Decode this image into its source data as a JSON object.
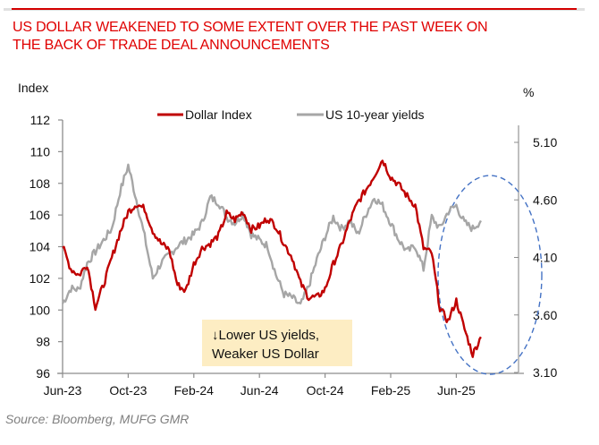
{
  "title": "US DOLLAR WEAKENED TO SOME EXTENT OVER THE PAST WEEK ON THE BACK OF TRADE DEAL ANNOUNCEMENTS",
  "title_lines": [
    "US DOLLAR WEAKENED TO SOME EXTENT OVER THE PAST WEEK ON",
    "THE BACK OF TRADE DEAL ANNOUNCEMENTS"
  ],
  "source": "Source: Bloomberg, MUFG GMR",
  "colors": {
    "title": "#e00000",
    "dollar_index": "#c00000",
    "us10y": "#a6a6a6",
    "ellipse": "#4472c4",
    "annotation_bg": "#fdedc3",
    "axis": "#8c8c8c",
    "right_axis": "#bfbfbf"
  },
  "chart_data": {
    "type": "line",
    "title": "US DOLLAR WEAKENED TO SOME EXTENT OVER THE PAST WEEK ON THE BACK OF TRADE DEAL ANNOUNCEMENTS",
    "xlabel": "",
    "ylabel": "Index",
    "y2label": "%",
    "ylim": [
      96,
      112
    ],
    "y2lim": [
      3.1,
      5.1
    ],
    "xlim": [
      "Jun-23",
      "Jul-25"
    ],
    "yticks": [
      96,
      98,
      100,
      102,
      104,
      106,
      108,
      110,
      112
    ],
    "y2ticks": [
      "3.10",
      "3.60",
      "4.10",
      "4.60",
      "5.10"
    ],
    "xticks": [
      "Jun-23",
      "Oct-23",
      "Feb-24",
      "Jun-24",
      "Oct-24",
      "Feb-25",
      "Jun-25"
    ],
    "grid": false,
    "legend": {
      "placement": "top-center",
      "entries": [
        "Dollar Index",
        "US 10-year yields"
      ]
    },
    "x_months_from_jun23": [
      0,
      0.5,
      1,
      1.5,
      2,
      2.5,
      3,
      3.5,
      4,
      4.5,
      5,
      5.5,
      6,
      6.5,
      7,
      7.5,
      8,
      8.5,
      9,
      9.5,
      10,
      10.5,
      11,
      11.5,
      12,
      12.5,
      13,
      13.5,
      14,
      14.5,
      15,
      15.5,
      16,
      16.5,
      17,
      17.5,
      18,
      18.5,
      19,
      19.5,
      20,
      20.5,
      21,
      21.5,
      22,
      22.5,
      23,
      23.5,
      24,
      24.5,
      25,
      25.5
    ],
    "series": [
      {
        "name": "Dollar Index",
        "axis": "left",
        "values": [
          104.0,
          102.6,
          102.2,
          102.9,
          100.2,
          101.6,
          103.3,
          104.9,
          106.2,
          106.7,
          106.4,
          105.0,
          104.2,
          103.8,
          101.6,
          101.2,
          102.9,
          103.9,
          104.2,
          104.7,
          106.1,
          105.7,
          106.2,
          105.1,
          105.3,
          105.8,
          105.3,
          104.2,
          103.3,
          101.7,
          100.8,
          100.8,
          101.3,
          102.9,
          104.1,
          105.6,
          106.8,
          107.6,
          108.5,
          109.5,
          108.4,
          107.9,
          107.2,
          106.6,
          103.9,
          103.6,
          100.1,
          99.3,
          100.6,
          98.8,
          97.2,
          98.3
        ]
      },
      {
        "name": "US 10-year yields",
        "axis": "right",
        "values": [
          3.7,
          3.83,
          3.82,
          4.05,
          4.15,
          4.25,
          4.35,
          4.67,
          4.9,
          4.6,
          4.28,
          3.92,
          4.05,
          4.12,
          4.2,
          4.25,
          4.3,
          4.4,
          4.62,
          4.58,
          4.45,
          4.4,
          4.48,
          4.3,
          4.25,
          4.2,
          3.95,
          3.78,
          3.75,
          3.68,
          3.85,
          4.08,
          4.28,
          4.45,
          4.35,
          4.42,
          4.3,
          4.48,
          4.62,
          4.55,
          4.4,
          4.25,
          4.15,
          4.2,
          4.0,
          4.45,
          4.35,
          4.5,
          4.55,
          4.4,
          4.35,
          4.42
        ]
      }
    ],
    "annotations": [
      {
        "type": "text-box",
        "text_lines": [
          "↓Lower US yields,",
          "Weaker US Dollar"
        ]
      },
      {
        "type": "dashed-ellipse",
        "x_from": "Apr-25",
        "x_to": "Jul-25",
        "y_from": 96,
        "y_to": 106
      }
    ]
  }
}
